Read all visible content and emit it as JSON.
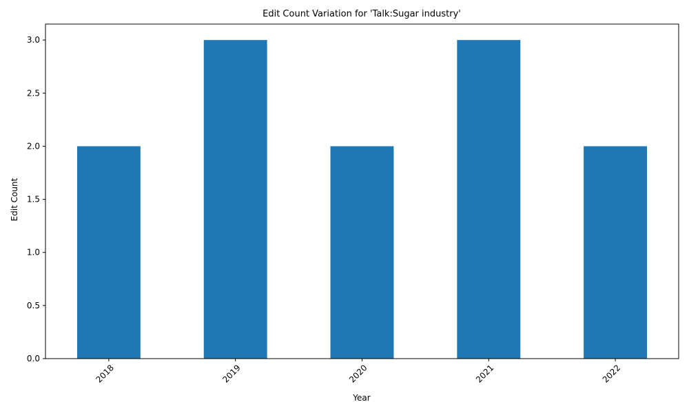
{
  "chart_data": {
    "type": "bar",
    "title": "Edit Count Variation for 'Talk:Sugar industry'",
    "xlabel": "Year",
    "ylabel": "Edit Count",
    "categories": [
      "2018",
      "2019",
      "2020",
      "2021",
      "2022"
    ],
    "values": [
      2,
      3,
      2,
      3,
      2
    ],
    "ylim": [
      0,
      3.15
    ],
    "yticks": [
      "0.0",
      "0.5",
      "1.0",
      "1.5",
      "2.0",
      "2.5",
      "3.0"
    ],
    "bar_color": "#1f77b4",
    "grid": false,
    "legend": "none"
  }
}
